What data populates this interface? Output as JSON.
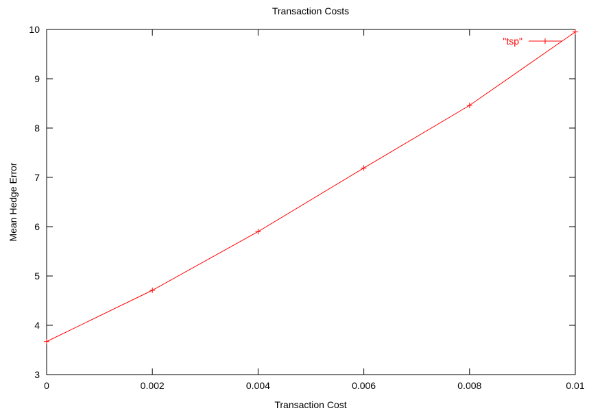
{
  "chart_data": {
    "type": "line",
    "title": "Transaction Costs",
    "xlabel": "Transaction Cost",
    "ylabel": "Mean Hedge Error",
    "xlim": [
      0,
      0.01
    ],
    "ylim": [
      3,
      10
    ],
    "xticks": [
      0,
      0.002,
      0.004,
      0.006,
      0.008,
      0.01
    ],
    "xtick_labels": [
      "0",
      "0.002",
      "0.004",
      "0.006",
      "0.008",
      "0.01"
    ],
    "yticks": [
      3,
      4,
      5,
      6,
      7,
      8,
      9,
      10
    ],
    "ytick_labels": [
      "3",
      "4",
      "5",
      "6",
      "7",
      "8",
      "9",
      "10"
    ],
    "grid": false,
    "legend_position": "top-right",
    "series": [
      {
        "name": "\"tsp\"",
        "color": "#ff0000",
        "marker": "plus",
        "x": [
          0,
          0.002,
          0.004,
          0.006,
          0.008,
          0.01
        ],
        "y": [
          3.67,
          4.71,
          5.9,
          7.19,
          8.46,
          9.95
        ]
      }
    ]
  }
}
